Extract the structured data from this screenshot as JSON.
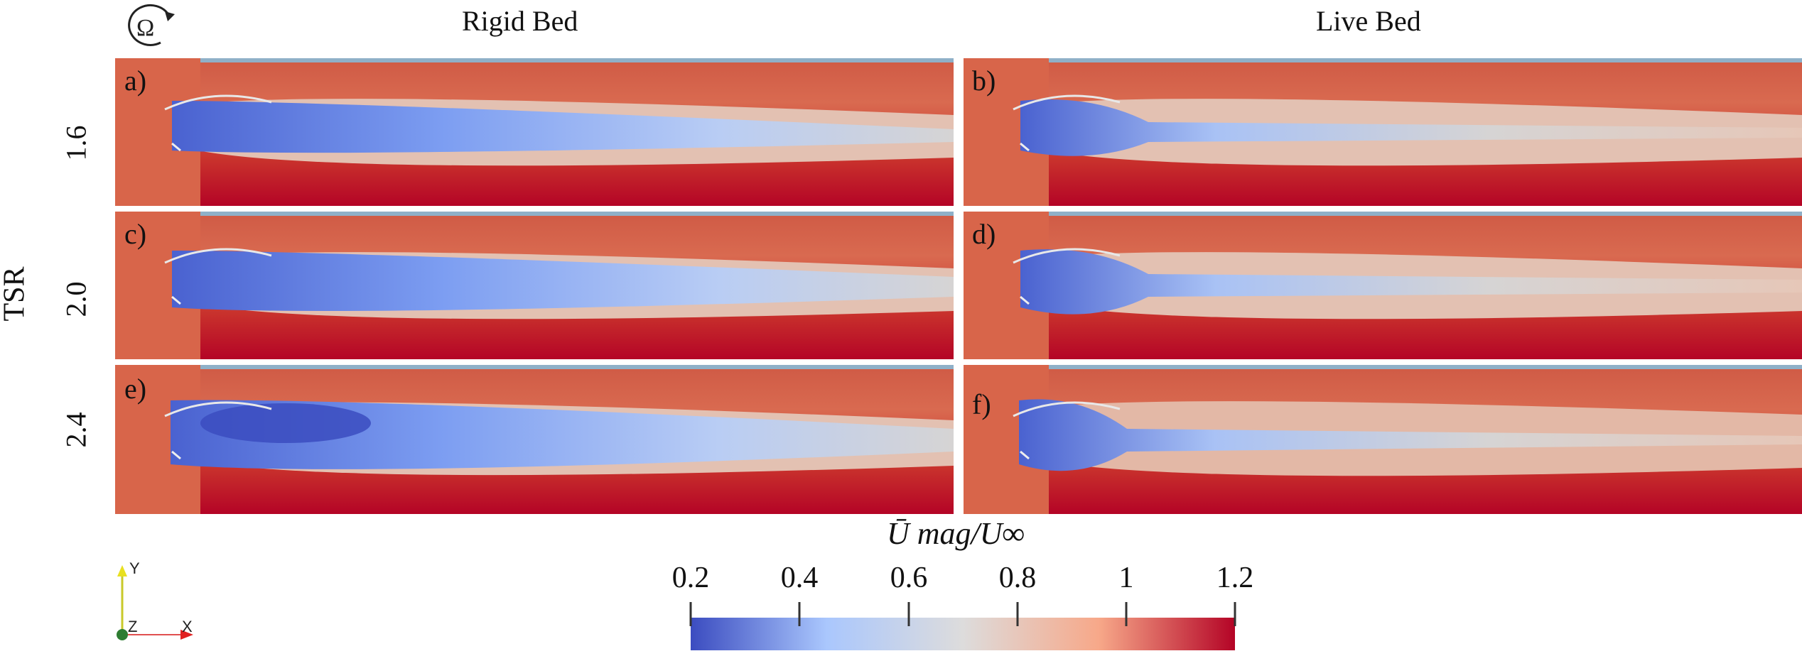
{
  "columns": {
    "rigid": "Rigid Bed",
    "live": "Live Bed"
  },
  "y_axis_label": "TSR",
  "rows": [
    "1.6",
    "2.0",
    "2.4"
  ],
  "panel_labels": [
    "a)",
    "b)",
    "c)",
    "d)",
    "e)",
    "f)"
  ],
  "rotation_symbol": "Ω",
  "colorbar": {
    "title": "Ū mag/U∞",
    "ticks": [
      "0.2",
      "0.4",
      "0.6",
      "0.8",
      "1",
      "1.2"
    ],
    "colors": [
      "#3b4cc0",
      "#aac7fd",
      "#dddcdc",
      "#f7a889",
      "#b40426"
    ]
  },
  "axes_triad": {
    "y": "Y",
    "z": "Z",
    "x": "X"
  }
}
